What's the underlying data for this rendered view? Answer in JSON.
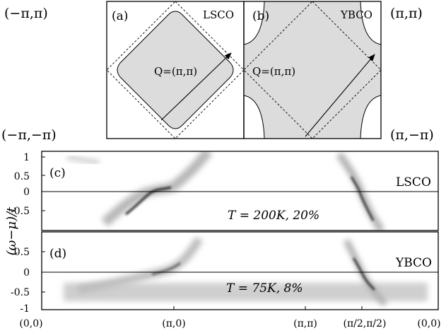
{
  "top_panels": {
    "corner_labels": {
      "top_left": "(−π,π)",
      "bottom_left": "(−π,−π)",
      "top_right": "(π,π)",
      "bottom_right": "(π,−π)"
    },
    "panel_a": {
      "tag": "(a)",
      "material": "LSCO",
      "q_label": "Q=(π,π)"
    },
    "panel_b": {
      "tag": "(b)",
      "material": "YBCO",
      "q_label": "Q=(π,π)"
    }
  },
  "spectral_panels": {
    "ylabel": "(ω−μ)/t",
    "x_ticks": [
      "(0,0)",
      "(π,0)",
      "(π,π)",
      "(π/2,π/2)",
      "(0,0)"
    ],
    "x_tick_positions": [
      0,
      1,
      2,
      3,
      4
    ],
    "panel_c": {
      "tag": "(c)",
      "material": "LSCO",
      "condition": "T = 200K, 20%",
      "y_ticks": [
        "1",
        "0.5",
        "0",
        "-0.5"
      ],
      "y_tick_values": [
        1,
        0.5,
        0,
        -0.5
      ],
      "ylim": [
        -1,
        1
      ]
    },
    "panel_d": {
      "tag": "(d)",
      "material": "YBCO",
      "condition": "T = 75K, 8%",
      "y_ticks": [
        "0.5",
        "0",
        "-0.5",
        "-1"
      ],
      "y_tick_values": [
        0.5,
        0,
        -0.5,
        -1
      ],
      "ylim": [
        -1,
        1
      ]
    }
  }
}
